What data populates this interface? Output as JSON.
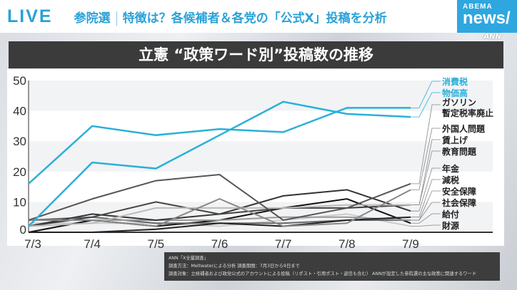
{
  "header": {
    "live": "LIVE",
    "topic": "参院選",
    "headline": "特徴は？各候補者＆各党の「公式X」投稿を分析",
    "logo_top": "ABEMA",
    "logo_bottom": "news/",
    "watermark": "ANN"
  },
  "title": "立憲 “政策ワード別”投稿数の推移",
  "footnote": {
    "line1": "ANN「X全量調査」",
    "line2": "調査方法：Meltwaterによる分析 調査期間：7月3日から9日まで",
    "line3": "調査対象：立候補者および政党公式のアカウントによる投稿（リポスト・引用ポスト・返信も含む） ANNが設定した参院選の主な政策に関連するワード"
  },
  "chart_data": {
    "type": "line",
    "title": "立憲 “政策ワード別”投稿数の推移",
    "categories": [
      "7/3",
      "7/4",
      "7/5",
      "7/6",
      "7/7",
      "7/8",
      "7/9"
    ],
    "ylim": [
      0,
      50
    ],
    "yticks": [
      0,
      10,
      20,
      30,
      40,
      50
    ],
    "grid": "horizontal bands",
    "legend": "right",
    "series": [
      {
        "name": "消費税",
        "color": "#2ab0d8",
        "values": [
          16,
          35,
          32,
          34,
          33,
          41,
          41
        ]
      },
      {
        "name": "物価高",
        "color": "#2ab0d8",
        "values": [
          2,
          23,
          21,
          32,
          43,
          39,
          38
        ]
      },
      {
        "name": "ガソリン暫定税率廃止",
        "color": "#555555",
        "values": [
          4,
          11,
          17,
          19,
          4,
          8,
          16
        ]
      },
      {
        "name": "外国人問題",
        "color": "#888888",
        "values": [
          4,
          4,
          2,
          11,
          2,
          3,
          14
        ]
      },
      {
        "name": "賃上げ",
        "color": "#bbbbbb",
        "values": [
          2,
          3,
          8,
          8,
          8,
          9,
          9
        ]
      },
      {
        "name": "教育問題",
        "color": "#444444",
        "values": [
          2,
          5,
          10,
          6,
          8,
          8,
          9
        ]
      },
      {
        "name": "年金",
        "color": "#333333",
        "values": [
          2,
          6,
          4,
          6,
          12,
          14,
          7
        ]
      },
      {
        "name": "減税",
        "color": "#222222",
        "values": [
          0,
          0,
          1,
          3,
          2,
          4,
          5
        ]
      },
      {
        "name": "安全保障",
        "color": "#999999",
        "values": [
          4,
          4,
          4,
          4,
          5,
          5,
          4
        ]
      },
      {
        "name": "社会保障",
        "color": "#666666",
        "values": [
          4,
          5,
          3,
          3,
          3,
          4,
          4
        ]
      },
      {
        "name": "給付",
        "color": "#111111",
        "values": [
          0,
          4,
          2,
          4,
          8,
          11,
          3
        ]
      },
      {
        "name": "財源",
        "color": "#cccccc",
        "values": [
          3,
          3,
          3,
          2,
          4,
          6,
          2
        ]
      }
    ]
  }
}
